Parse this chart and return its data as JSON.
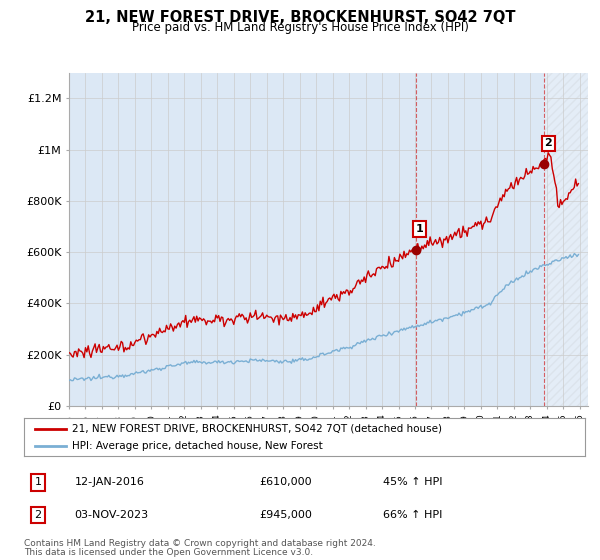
{
  "title": "21, NEW FOREST DRIVE, BROCKENHURST, SO42 7QT",
  "subtitle": "Price paid vs. HM Land Registry's House Price Index (HPI)",
  "title_fontsize": 10.5,
  "subtitle_fontsize": 8.5,
  "ylabel_ticks": [
    "£0",
    "£200K",
    "£400K",
    "£600K",
    "£800K",
    "£1M",
    "£1.2M"
  ],
  "ytick_values": [
    0,
    200000,
    400000,
    600000,
    800000,
    1000000,
    1200000
  ],
  "ylim": [
    0,
    1300000
  ],
  "xlim_start": 1995.0,
  "xlim_end": 2026.5,
  "line_color_red": "#cc0000",
  "line_color_blue": "#7aafd4",
  "marker_color": "#990000",
  "grid_color": "#cccccc",
  "sale1_x": 2016.04,
  "sale1_y": 610000,
  "sale1_label": "1",
  "sale2_x": 2023.84,
  "sale2_y": 945000,
  "sale2_label": "2",
  "legend_line1": "21, NEW FOREST DRIVE, BROCKENHURST, SO42 7QT (detached house)",
  "legend_line2": "HPI: Average price, detached house, New Forest",
  "table_row1": [
    "1",
    "12-JAN-2016",
    "£610,000",
    "45% ↑ HPI"
  ],
  "table_row2": [
    "2",
    "03-NOV-2023",
    "£945,000",
    "66% ↑ HPI"
  ],
  "footer1": "Contains HM Land Registry data © Crown copyright and database right 2024.",
  "footer2": "This data is licensed under the Open Government Licence v3.0.",
  "bg_color": "#ffffff",
  "plot_bg_color": "#dce8f5"
}
